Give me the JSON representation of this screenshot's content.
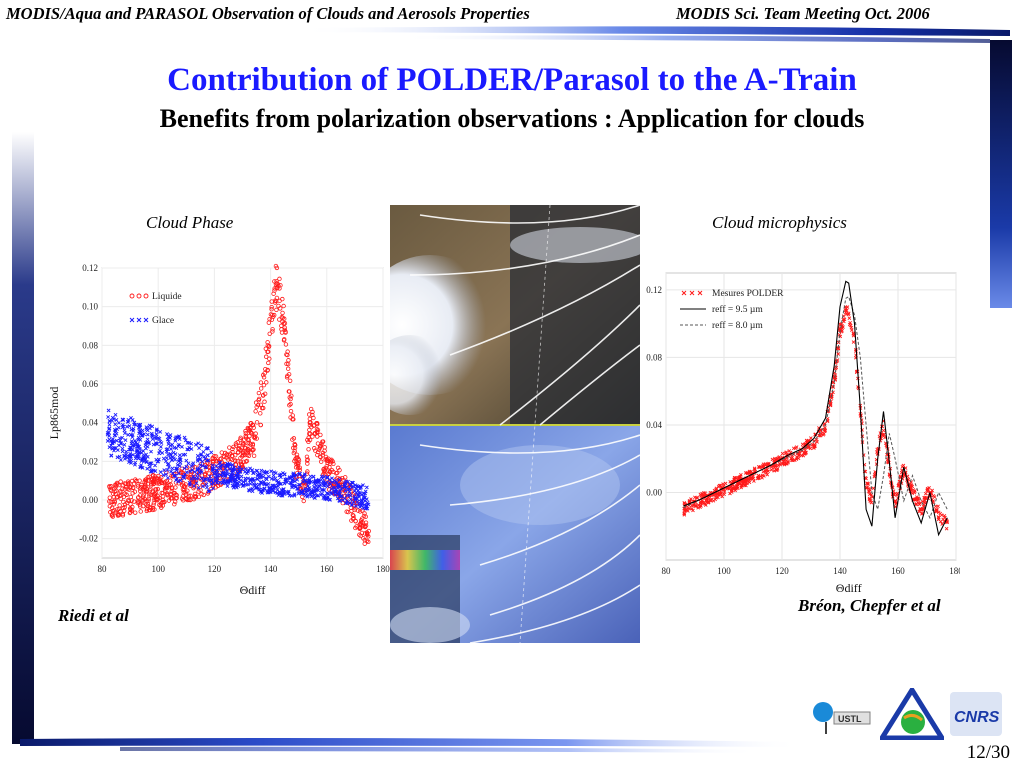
{
  "header": {
    "left": "MODIS/Aqua  and PARASOL Observation of Clouds and Aerosols Properties",
    "right": "MODIS Sci. Team Meeting Oct. 2006"
  },
  "title": "Contribution of POLDER/Parasol to the A-Train",
  "subtitle": "Benefits from polarization observations : Application for clouds",
  "captions": {
    "phase": "Cloud Phase",
    "micro": "Cloud microphysics",
    "left_credit": "Riedi et al",
    "right_credit": "Bréon, Chepfer et al"
  },
  "page_number": "12/30",
  "logos": [
    "USTL",
    "CNRS"
  ],
  "colors": {
    "title_blue": "#1a1aff",
    "liquid_red": "#ff1a1a",
    "ice_blue": "#1a1aff",
    "frame_navy": "#0a1a5c"
  },
  "chart_data": [
    {
      "type": "scatter",
      "panel": "cloud-phase",
      "xlabel": "Θdiff",
      "ylabel": "Lp865mod",
      "xlim": [
        80,
        180
      ],
      "ylim": [
        -0.03,
        0.12
      ],
      "xticks": [
        "80",
        "100",
        "120",
        "140",
        "160",
        "180"
      ],
      "yticks": [
        "0.12",
        "0.10",
        "0.08",
        "0.06",
        "0.04",
        "0.02",
        "0.00",
        "-0.02"
      ],
      "series": [
        {
          "name": "Liquide",
          "color": "#ff1a1a",
          "marker": "o",
          "x": [
            82,
            88,
            95,
            102,
            110,
            118,
            125,
            130,
            134,
            137,
            139,
            141,
            142,
            143,
            145,
            147,
            149,
            152,
            154,
            157,
            160,
            163,
            167,
            171,
            175
          ],
          "y": [
            0.0,
            0.001,
            0.003,
            0.005,
            0.008,
            0.012,
            0.018,
            0.024,
            0.034,
            0.052,
            0.078,
            0.1,
            0.11,
            0.105,
            0.085,
            0.05,
            0.02,
            0.004,
            0.04,
            0.03,
            0.015,
            0.01,
            0.002,
            -0.008,
            -0.02
          ]
        },
        {
          "name": "Glace",
          "color": "#1a1aff",
          "marker": "x",
          "x": [
            82,
            88,
            95,
            102,
            110,
            118,
            125,
            130,
            135,
            140,
            145,
            150,
            155,
            160,
            165,
            170,
            175
          ],
          "y": [
            0.035,
            0.032,
            0.028,
            0.024,
            0.02,
            0.016,
            0.013,
            0.011,
            0.01,
            0.009,
            0.008,
            0.008,
            0.007,
            0.006,
            0.005,
            0.003,
            0.001
          ]
        }
      ]
    },
    {
      "type": "line",
      "panel": "cloud-microphysics",
      "xlabel": "Θdiff",
      "xlim": [
        80,
        180
      ],
      "ylim": [
        -0.04,
        0.13
      ],
      "xticks": [
        "80",
        "100",
        "120",
        "140",
        "160",
        "180"
      ],
      "yticks": [
        "0.12",
        "0.08",
        "0.04",
        "0.00"
      ],
      "series": [
        {
          "name": "Mesures POLDER",
          "color": "#ff1a1a",
          "marker": "x",
          "x": [
            86,
            92,
            98,
            104,
            110,
            116,
            122,
            127,
            131,
            135,
            138,
            140,
            142,
            143,
            145,
            147,
            149,
            151,
            153,
            155,
            157,
            159,
            162,
            165,
            168,
            171,
            174,
            177
          ],
          "y": [
            -0.01,
            -0.005,
            0.0,
            0.005,
            0.01,
            0.015,
            0.021,
            0.025,
            0.03,
            0.04,
            0.065,
            0.095,
            0.108,
            0.106,
            0.09,
            0.05,
            0.005,
            -0.005,
            0.025,
            0.04,
            0.015,
            -0.008,
            0.015,
            0.0,
            -0.01,
            0.002,
            -0.012,
            -0.02
          ]
        },
        {
          "name": "reff = 9.5 µm",
          "color": "#000000",
          "dash": "solid",
          "x": [
            86,
            92,
            98,
            104,
            110,
            116,
            122,
            127,
            131,
            135,
            138,
            140,
            142,
            143,
            145,
            147,
            149,
            151,
            153,
            155,
            157,
            159,
            162,
            165,
            168,
            171,
            174,
            177
          ],
          "y": [
            -0.008,
            -0.004,
            0.001,
            0.006,
            0.011,
            0.016,
            0.022,
            0.026,
            0.032,
            0.044,
            0.075,
            0.11,
            0.125,
            0.124,
            0.1,
            0.05,
            -0.01,
            -0.02,
            0.02,
            0.048,
            0.018,
            -0.015,
            0.015,
            -0.005,
            -0.018,
            0.0,
            -0.025,
            -0.015
          ]
        },
        {
          "name": "reff = 8.0 µm",
          "color": "#555555",
          "dash": "dashed",
          "x": [
            86,
            92,
            98,
            104,
            110,
            116,
            122,
            127,
            131,
            135,
            138,
            140,
            142,
            143,
            145,
            147,
            149,
            151,
            153,
            155,
            157,
            159,
            162,
            165,
            168,
            171,
            174,
            177
          ],
          "y": [
            -0.009,
            -0.004,
            0.001,
            0.006,
            0.011,
            0.016,
            0.021,
            0.025,
            0.03,
            0.04,
            0.065,
            0.095,
            0.115,
            0.116,
            0.105,
            0.08,
            0.04,
            0.0,
            -0.01,
            0.01,
            0.035,
            0.02,
            -0.005,
            0.01,
            -0.005,
            -0.015,
            0.0,
            -0.01
          ]
        }
      ]
    }
  ]
}
